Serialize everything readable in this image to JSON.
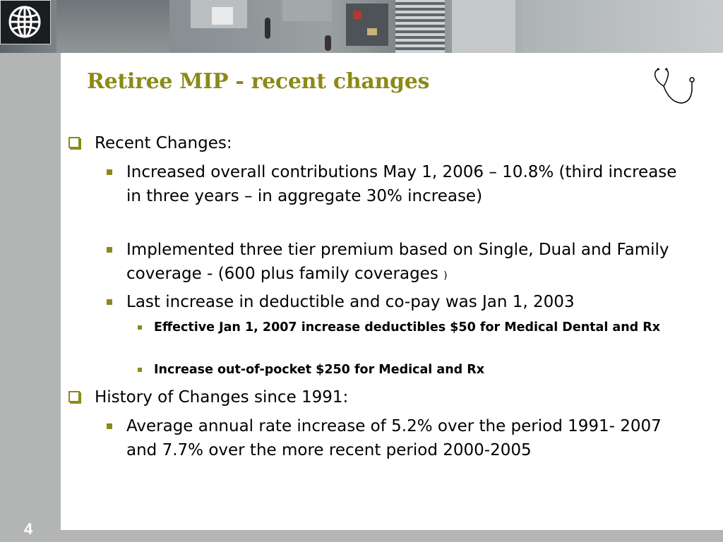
{
  "slide": {
    "title": "Retiree MIP - recent changes",
    "page_number": "4",
    "icons": {
      "logo": "world-bank-globe-icon",
      "header": "stethoscope-icon"
    },
    "colors": {
      "accent": "#8c8a17",
      "sidebar": "#b3b5b5",
      "text": "#000000"
    }
  },
  "content": {
    "sections": [
      {
        "label": "Recent Changes:",
        "items": [
          {
            "text": "Increased overall contributions May 1, 2006 – 10.8% (third increase in three years – in aggregate 30% increase)"
          },
          {
            "text": "Implemented three tier premium based on Single, Dual and Family coverage - (600 plus family coverages",
            "suffix": ")"
          },
          {
            "text": "Last increase in deductible and co-pay was Jan 1, 2003",
            "subitems": [
              "Effective Jan 1, 2007 increase deductibles $50 for Medical Dental and Rx",
              "Increase out-of-pocket $250 for Medical and Rx"
            ]
          }
        ]
      },
      {
        "label": "History of Changes since 1991:",
        "items": [
          {
            "text": "Average annual rate increase of 5.2% over the period 1991- 2007 and 7.7% over the more recent period 2000-2005"
          }
        ]
      }
    ]
  }
}
